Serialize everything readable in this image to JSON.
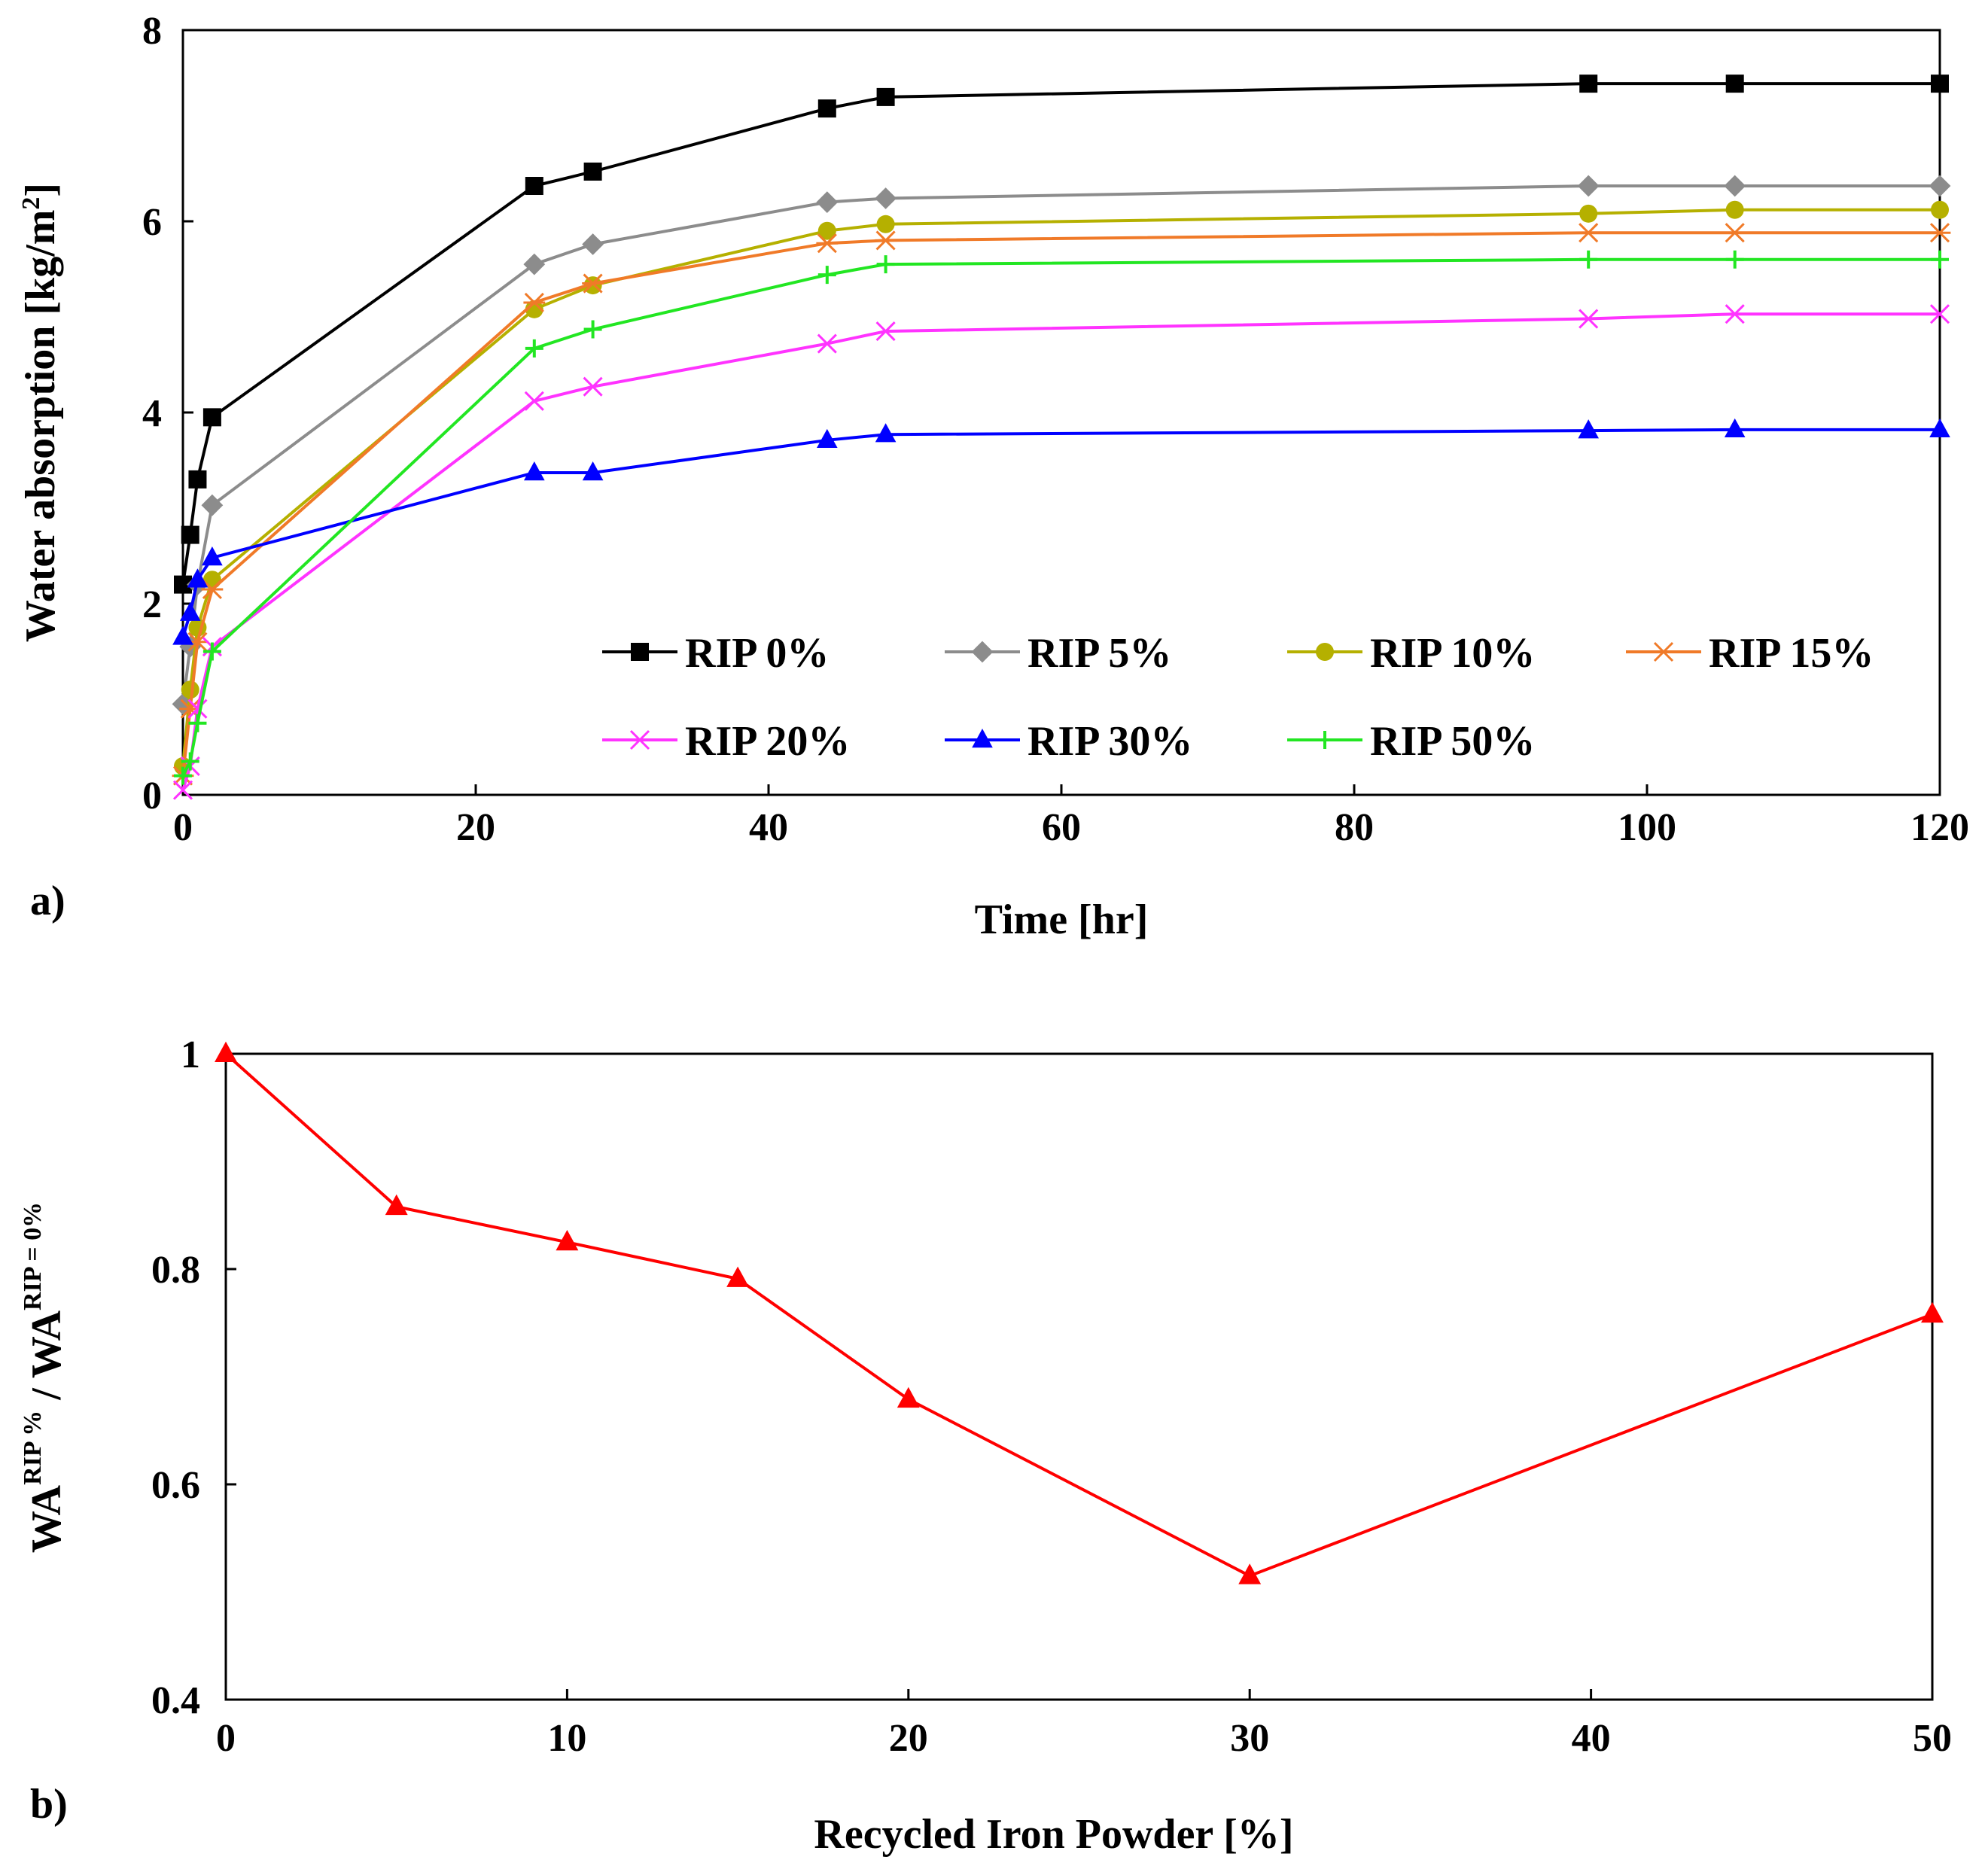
{
  "chart_data": [
    {
      "panel_label": "a)",
      "type": "line",
      "xlabel": "Time [hr]",
      "ylabel_main": "Water  absorption [kg/m",
      "ylabel_sup": "2",
      "ylabel_tail": "]",
      "xlim": [
        0,
        120
      ],
      "ylim": [
        0,
        8
      ],
      "xticks": [
        0,
        20,
        40,
        60,
        80,
        100,
        120
      ],
      "yticks": [
        0,
        2,
        4,
        6,
        8
      ],
      "legend": "inside, lower-right",
      "series": [
        {
          "name": "RIP 0%",
          "color": "#000000",
          "marker": "square",
          "x": [
            0,
            0.5,
            1,
            2,
            24,
            28,
            44,
            48,
            96,
            106,
            120
          ],
          "y": [
            2.2,
            2.72,
            3.3,
            3.95,
            6.37,
            6.52,
            7.18,
            7.3,
            7.44,
            7.44,
            7.44
          ]
        },
        {
          "name": "RIP 5%",
          "color": "#8c8c8c",
          "marker": "diamond",
          "x": [
            0,
            0.5,
            1,
            2,
            24,
            28,
            44,
            48,
            96,
            106,
            120
          ],
          "y": [
            0.95,
            1.55,
            2.2,
            3.03,
            5.55,
            5.76,
            6.2,
            6.24,
            6.37,
            6.37,
            6.37
          ]
        },
        {
          "name": "RIP 10%",
          "color": "#b5b000",
          "marker": "circle",
          "x": [
            0,
            0.5,
            1,
            2,
            24,
            28,
            44,
            48,
            96,
            106,
            120
          ],
          "y": [
            0.3,
            1.1,
            1.75,
            2.25,
            5.08,
            5.33,
            5.9,
            5.97,
            6.08,
            6.12,
            6.12
          ]
        },
        {
          "name": "RIP 15%",
          "color": "#f07a28",
          "marker": "asterisk",
          "x": [
            0,
            0.5,
            1,
            2,
            24,
            28,
            44,
            48,
            96,
            106,
            120
          ],
          "y": [
            0.2,
            0.9,
            1.6,
            2.15,
            5.15,
            5.35,
            5.77,
            5.8,
            5.88,
            5.88,
            5.88
          ]
        },
        {
          "name": "RIP 20%",
          "color": "#ff33ff",
          "marker": "x",
          "x": [
            0,
            0.5,
            1,
            2,
            24,
            28,
            44,
            48,
            96,
            106,
            120
          ],
          "y": [
            0.05,
            0.3,
            0.9,
            1.55,
            4.12,
            4.27,
            4.72,
            4.85,
            4.98,
            5.03,
            5.03
          ]
        },
        {
          "name": "RIP 30%",
          "color": "#0000ff",
          "marker": "triangle",
          "x": [
            0,
            0.5,
            1,
            2,
            24,
            28,
            44,
            48,
            96,
            106,
            120
          ],
          "y": [
            1.65,
            1.9,
            2.25,
            2.48,
            3.37,
            3.37,
            3.71,
            3.77,
            3.81,
            3.82,
            3.82
          ]
        },
        {
          "name": "RIP 50%",
          "color": "#22e622",
          "marker": "plus",
          "x": [
            0,
            0.5,
            1,
            2,
            24,
            28,
            44,
            48,
            96,
            106,
            120
          ],
          "y": [
            0.2,
            0.35,
            0.75,
            1.5,
            4.67,
            4.87,
            5.44,
            5.55,
            5.6,
            5.6,
            5.6
          ]
        }
      ]
    },
    {
      "panel_label": "b)",
      "type": "line",
      "xlabel": "Recycled Iron Powder [%]",
      "ylabel_a": "WA",
      "ylabel_sup_a": "RIP %",
      "ylabel_mid": " / WA",
      "ylabel_sup_b": "RIP = 0%",
      "xlim": [
        0,
        50
      ],
      "ylim": [
        0.4,
        1
      ],
      "xticks": [
        0,
        10,
        20,
        30,
        40,
        50
      ],
      "yticks": [
        0.4,
        0.6,
        0.8,
        1
      ],
      "series": [
        {
          "name": "WA ratio",
          "color": "#ff0000",
          "marker": "triangle",
          "x": [
            0,
            5,
            10,
            15,
            20,
            30,
            50
          ],
          "y": [
            1.0,
            0.858,
            0.825,
            0.791,
            0.679,
            0.515,
            0.758
          ]
        }
      ]
    }
  ]
}
